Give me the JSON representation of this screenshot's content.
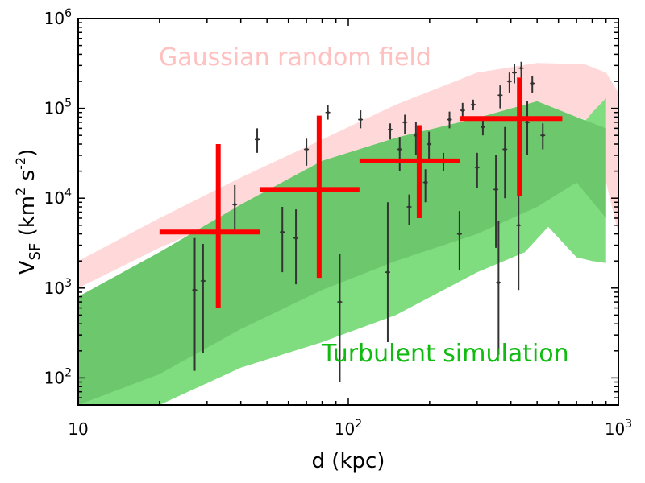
{
  "chart_data": {
    "type": "scatter",
    "xscale": "log",
    "yscale": "log",
    "xlim": [
      10,
      1000
    ],
    "ylim": [
      50,
      1000000
    ],
    "x_ticks": [
      {
        "value": 10,
        "base": "10",
        "exp": ""
      },
      {
        "value": 100,
        "base": "10",
        "exp": "2"
      },
      {
        "value": 1000,
        "base": "10",
        "exp": "3"
      }
    ],
    "y_ticks": [
      {
        "value": 100,
        "base": "10",
        "exp": "2"
      },
      {
        "value": 1000,
        "base": "10",
        "exp": "3"
      },
      {
        "value": 10000,
        "base": "10",
        "exp": "4"
      },
      {
        "value": 100000,
        "base": "10",
        "exp": "5"
      },
      {
        "value": 1000000,
        "base": "10",
        "exp": "6"
      }
    ],
    "xlabel": "d (kpc)",
    "ylabel": {
      "main": "V",
      "sub": "SF",
      "unit_open": " (km",
      "unit_exp1": "2",
      "unit_mid": " s",
      "unit_exp2": "-2",
      "unit_close": ")"
    },
    "annotations": [
      {
        "text": "Gaussian random field",
        "color": "#ffc0c0"
      },
      {
        "text": "Turbulent simulation",
        "color": "#11bb11"
      }
    ],
    "colors": {
      "pink_band": "#ffd9d9",
      "light_green_band": "#7fdc7f",
      "dark_green_band": "#6dc86d",
      "points": "#333333",
      "binned": "#ff0000"
    },
    "bands": {
      "gaussian_random_field": {
        "x": [
          10,
          20,
          40,
          80,
          150,
          300,
          500,
          750,
          900,
          1000
        ],
        "upper": [
          2000,
          6000,
          17000,
          45000,
          110000,
          250000,
          320000,
          310000,
          250000,
          150000
        ],
        "lower": [
          1000,
          2800,
          7000,
          17000,
          35000,
          75000,
          110000,
          75000,
          15000,
          4000
        ]
      },
      "turbulent_outer": {
        "x": [
          10,
          20,
          40,
          80,
          150,
          300,
          450,
          550,
          700,
          800,
          900
        ],
        "upper": [
          800,
          2500,
          8500,
          26000,
          47000,
          78000,
          110000,
          90000,
          55000,
          90000,
          130000
        ],
        "lower": [
          50,
          50,
          130,
          250,
          500,
          1500,
          2500,
          4800,
          2200,
          2000,
          1900
        ]
      },
      "turbulent_inner": {
        "x": [
          10,
          20,
          40,
          80,
          150,
          300,
          500,
          700,
          900
        ],
        "upper": [
          800,
          2500,
          8500,
          26000,
          47000,
          78000,
          120000,
          80000,
          60000
        ],
        "lower": [
          50,
          110,
          350,
          950,
          2000,
          4000,
          8000,
          15000,
          6000
        ]
      }
    },
    "points": [
      {
        "x": 27,
        "y": 950,
        "lo": 120,
        "hi": 3600
      },
      {
        "x": 29,
        "y": 1200,
        "lo": 190,
        "hi": 3100
      },
      {
        "x": 38,
        "y": 8500,
        "lo": 4000,
        "hi": 14000
      },
      {
        "x": 46,
        "y": 45000,
        "lo": 32000,
        "hi": 60000
      },
      {
        "x": 57,
        "y": 4200,
        "lo": 1500,
        "hi": 8000
      },
      {
        "x": 64,
        "y": 3600,
        "lo": 1100,
        "hi": 7500
      },
      {
        "x": 70,
        "y": 35000,
        "lo": 23000,
        "hi": 46000
      },
      {
        "x": 84,
        "y": 90000,
        "lo": 75000,
        "hi": 110000
      },
      {
        "x": 93,
        "y": 700,
        "lo": 90,
        "hi": 2400
      },
      {
        "x": 111,
        "y": 75000,
        "lo": 60000,
        "hi": 95000
      },
      {
        "x": 140,
        "y": 1500,
        "lo": 250,
        "hi": 9000
      },
      {
        "x": 143,
        "y": 58000,
        "lo": 45000,
        "hi": 68000
      },
      {
        "x": 155,
        "y": 35000,
        "lo": 20000,
        "hi": 48000
      },
      {
        "x": 162,
        "y": 70000,
        "lo": 52000,
        "hi": 85000
      },
      {
        "x": 168,
        "y": 8000,
        "lo": 5000,
        "hi": 11000
      },
      {
        "x": 178,
        "y": 50000,
        "lo": 30000,
        "hi": 70000
      },
      {
        "x": 193,
        "y": 15000,
        "lo": 9000,
        "hi": 21000
      },
      {
        "x": 199,
        "y": 40000,
        "lo": 25000,
        "hi": 55000
      },
      {
        "x": 225,
        "y": 25000,
        "lo": 20000,
        "hi": 32000
      },
      {
        "x": 237,
        "y": 75000,
        "lo": 60000,
        "hi": 92000
      },
      {
        "x": 258,
        "y": 4000,
        "lo": 1600,
        "hi": 7200
      },
      {
        "x": 265,
        "y": 95000,
        "lo": 80000,
        "hi": 115000
      },
      {
        "x": 290,
        "y": 110000,
        "lo": 95000,
        "hi": 125000
      },
      {
        "x": 300,
        "y": 22000,
        "lo": 13000,
        "hi": 32000
      },
      {
        "x": 315,
        "y": 62000,
        "lo": 50000,
        "hi": 74000
      },
      {
        "x": 352,
        "y": 12500,
        "lo": 2800,
        "hi": 30000
      },
      {
        "x": 360,
        "y": 1150,
        "lo": 180,
        "hi": 5600
      },
      {
        "x": 365,
        "y": 140000,
        "lo": 100000,
        "hi": 180000
      },
      {
        "x": 380,
        "y": 35000,
        "lo": 10000,
        "hi": 62000
      },
      {
        "x": 395,
        "y": 200000,
        "lo": 150000,
        "hi": 250000
      },
      {
        "x": 412,
        "y": 250000,
        "lo": 190000,
        "hi": 310000
      },
      {
        "x": 427,
        "y": 5000,
        "lo": 950,
        "hi": 18000
      },
      {
        "x": 437,
        "y": 280000,
        "lo": 220000,
        "hi": 330000
      },
      {
        "x": 460,
        "y": 70000,
        "lo": 30000,
        "hi": 120000
      },
      {
        "x": 480,
        "y": 190000,
        "lo": 150000,
        "hi": 230000
      },
      {
        "x": 525,
        "y": 50000,
        "lo": 35000,
        "hi": 68000
      }
    ],
    "binned": [
      {
        "x": 33,
        "y": 4200,
        "xlo": 20,
        "xhi": 47,
        "lo": 600,
        "hi": 40000
      },
      {
        "x": 78,
        "y": 12500,
        "xlo": 47,
        "xhi": 110,
        "lo": 1300,
        "hi": 83000
      },
      {
        "x": 183,
        "y": 26000,
        "xlo": 110,
        "xhi": 260,
        "lo": 6000,
        "hi": 65000
      },
      {
        "x": 430,
        "y": 77000,
        "xlo": 260,
        "xhi": 620,
        "lo": 10500,
        "hi": 220000
      }
    ]
  }
}
